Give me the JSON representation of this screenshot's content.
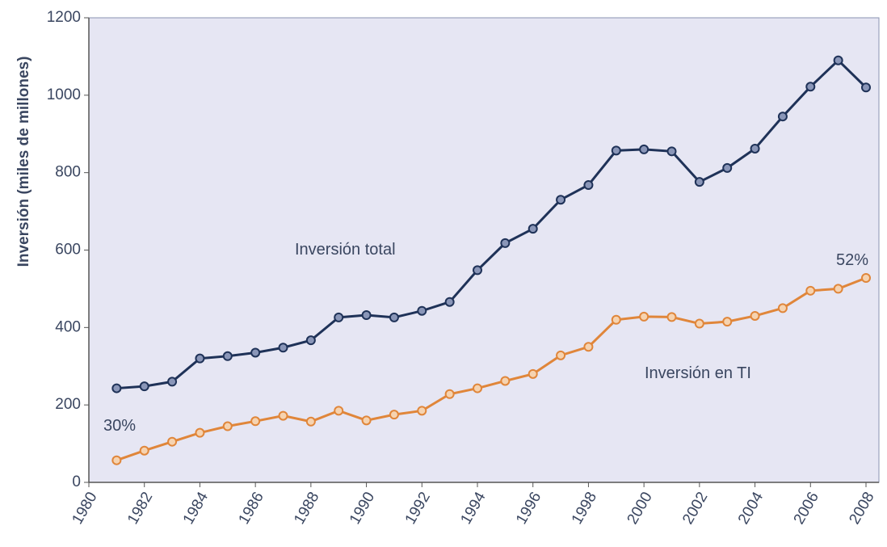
{
  "chart_data": {
    "type": "line",
    "y_label": "Inversión (miles de millones)",
    "annotations": [
      "Inversión total",
      "Inversión en TI",
      "30%",
      "52%"
    ],
    "x": [
      1981,
      1982,
      1983,
      1984,
      1985,
      1986,
      1987,
      1988,
      1989,
      1990,
      1991,
      1992,
      1993,
      1994,
      1995,
      1996,
      1997,
      1998,
      1999,
      2000,
      2001,
      2002,
      2003,
      2004,
      2005,
      2006,
      2007,
      2008
    ],
    "series": [
      {
        "name": "Inversión total",
        "color": "#1f3258",
        "values": [
          243,
          248,
          260,
          320,
          326,
          335,
          348,
          367,
          426,
          432,
          426,
          443,
          466,
          548,
          618,
          655,
          730,
          768,
          857,
          860,
          855,
          776,
          812,
          862,
          945,
          1022,
          1090,
          1020
        ]
      },
      {
        "name": "Inversión en TI",
        "color": "#e0863a",
        "values": [
          57,
          82,
          105,
          128,
          145,
          158,
          172,
          157,
          185,
          160,
          175,
          185,
          228,
          243,
          262,
          280,
          328,
          350,
          420,
          428,
          427,
          410,
          415,
          430,
          450,
          495,
          500,
          528
        ]
      }
    ],
    "xlim": [
      1980,
      2008
    ],
    "xticks": [
      1980,
      1982,
      1984,
      1986,
      1988,
      1990,
      1992,
      1994,
      1996,
      1998,
      2000,
      2002,
      2004,
      2006,
      2008
    ],
    "ylim": [
      0,
      1200
    ],
    "yticks": [
      0,
      200,
      400,
      600,
      800,
      1000,
      1200
    ]
  }
}
